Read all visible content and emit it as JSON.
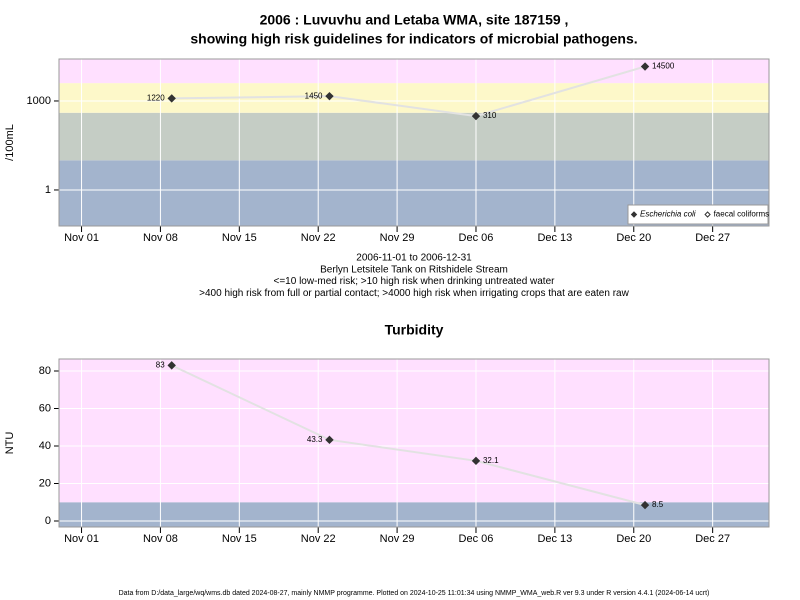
{
  "chart_data": [
    {
      "type": "line",
      "title": [
        "2006 : Luvuvhu and Letaba WMA, site 187159 ,",
        "showing high risk guidelines for indicators of microbial pathogens."
      ],
      "y_label": "/100mL",
      "log_scale": true,
      "grid": true,
      "xlim": [
        "2006-10-30",
        "2007-01-01"
      ],
      "xticks": [
        {
          "value": "2006-11-01",
          "label": "Nov 01"
        },
        {
          "value": "2006-11-08",
          "label": "Nov 08"
        },
        {
          "value": "2006-11-15",
          "label": "Nov 15"
        },
        {
          "value": "2006-11-22",
          "label": "Nov 22"
        },
        {
          "value": "2006-11-29",
          "label": "Nov 29"
        },
        {
          "value": "2006-12-06",
          "label": "Dec 06"
        },
        {
          "value": "2006-12-13",
          "label": "Dec 13"
        },
        {
          "value": "2006-12-20",
          "label": "Dec 20"
        },
        {
          "value": "2006-12-27",
          "label": "Dec 27"
        }
      ],
      "ylim": [
        0.061,
        26000
      ],
      "yticks": [
        1,
        1000
      ],
      "thresholds": [
        10,
        400,
        4000
      ],
      "band_colors": [
        "#a3b4cd",
        "#c5cdc5",
        "#fdf8c9",
        "#ffe0ff"
      ],
      "line_color": "#e2e2e2",
      "x": [
        "2006-11-09",
        "2006-11-23",
        "2006-12-06",
        "2006-12-21"
      ],
      "series": [
        {
          "name": "Escherichia coli",
          "color": "#333333",
          "marker": "filled",
          "values": [
            1220,
            1450,
            310,
            14500
          ]
        },
        {
          "name": "faecal coliforms",
          "color": "#333333",
          "marker": "open",
          "values": [
            null,
            null,
            null,
            null
          ]
        }
      ],
      "legend": "bottom-right",
      "caption": [
        "2006-11-01 to 2006-12-31",
        "Berlyn Letsitele Tank on Ritshidele Stream",
        "<=10 low-med risk; >10 high risk when drinking untreated water",
        ">400 high risk from full or partial contact; >4000 high risk when irrigating crops that are eaten raw"
      ]
    },
    {
      "type": "line",
      "title": "Turbidity",
      "y_label": "NTU",
      "log_scale": false,
      "grid": true,
      "xlim": [
        "2006-10-30",
        "2007-01-01"
      ],
      "xticks": [
        {
          "value": "2006-11-01",
          "label": "Nov 01"
        },
        {
          "value": "2006-11-08",
          "label": "Nov 08"
        },
        {
          "value": "2006-11-15",
          "label": "Nov 15"
        },
        {
          "value": "2006-11-22",
          "label": "Nov 22"
        },
        {
          "value": "2006-11-29",
          "label": "Nov 29"
        },
        {
          "value": "2006-12-06",
          "label": "Dec 06"
        },
        {
          "value": "2006-12-13",
          "label": "Dec 13"
        },
        {
          "value": "2006-12-20",
          "label": "Dec 20"
        },
        {
          "value": "2006-12-27",
          "label": "Dec 27"
        }
      ],
      "ylim": [
        -3.2,
        86.4
      ],
      "yticks": [
        0,
        20,
        40,
        60,
        80
      ],
      "thresholds": [
        10
      ],
      "band_colors": [
        "#a3b4cd",
        "#ffe0ff"
      ],
      "line_color": "#e2e2e2",
      "x": [
        "2006-11-09",
        "2006-11-23",
        "2006-12-06",
        "2006-12-21"
      ],
      "series": [
        {
          "name": "Turbidity",
          "color": "#333333",
          "marker": "filled",
          "values": [
            83,
            43.3,
            32.1,
            8.5
          ]
        }
      ]
    }
  ],
  "footer": "Data from D:/data_large/wq/wms.db dated 2024-08-27, mainly NMMP programme. Plotted on 2024-10-25 11:01:34 using NMMP_WMA_web.R ver 9.3 under R version 4.4.1 (2024-06-14 ucrt)"
}
